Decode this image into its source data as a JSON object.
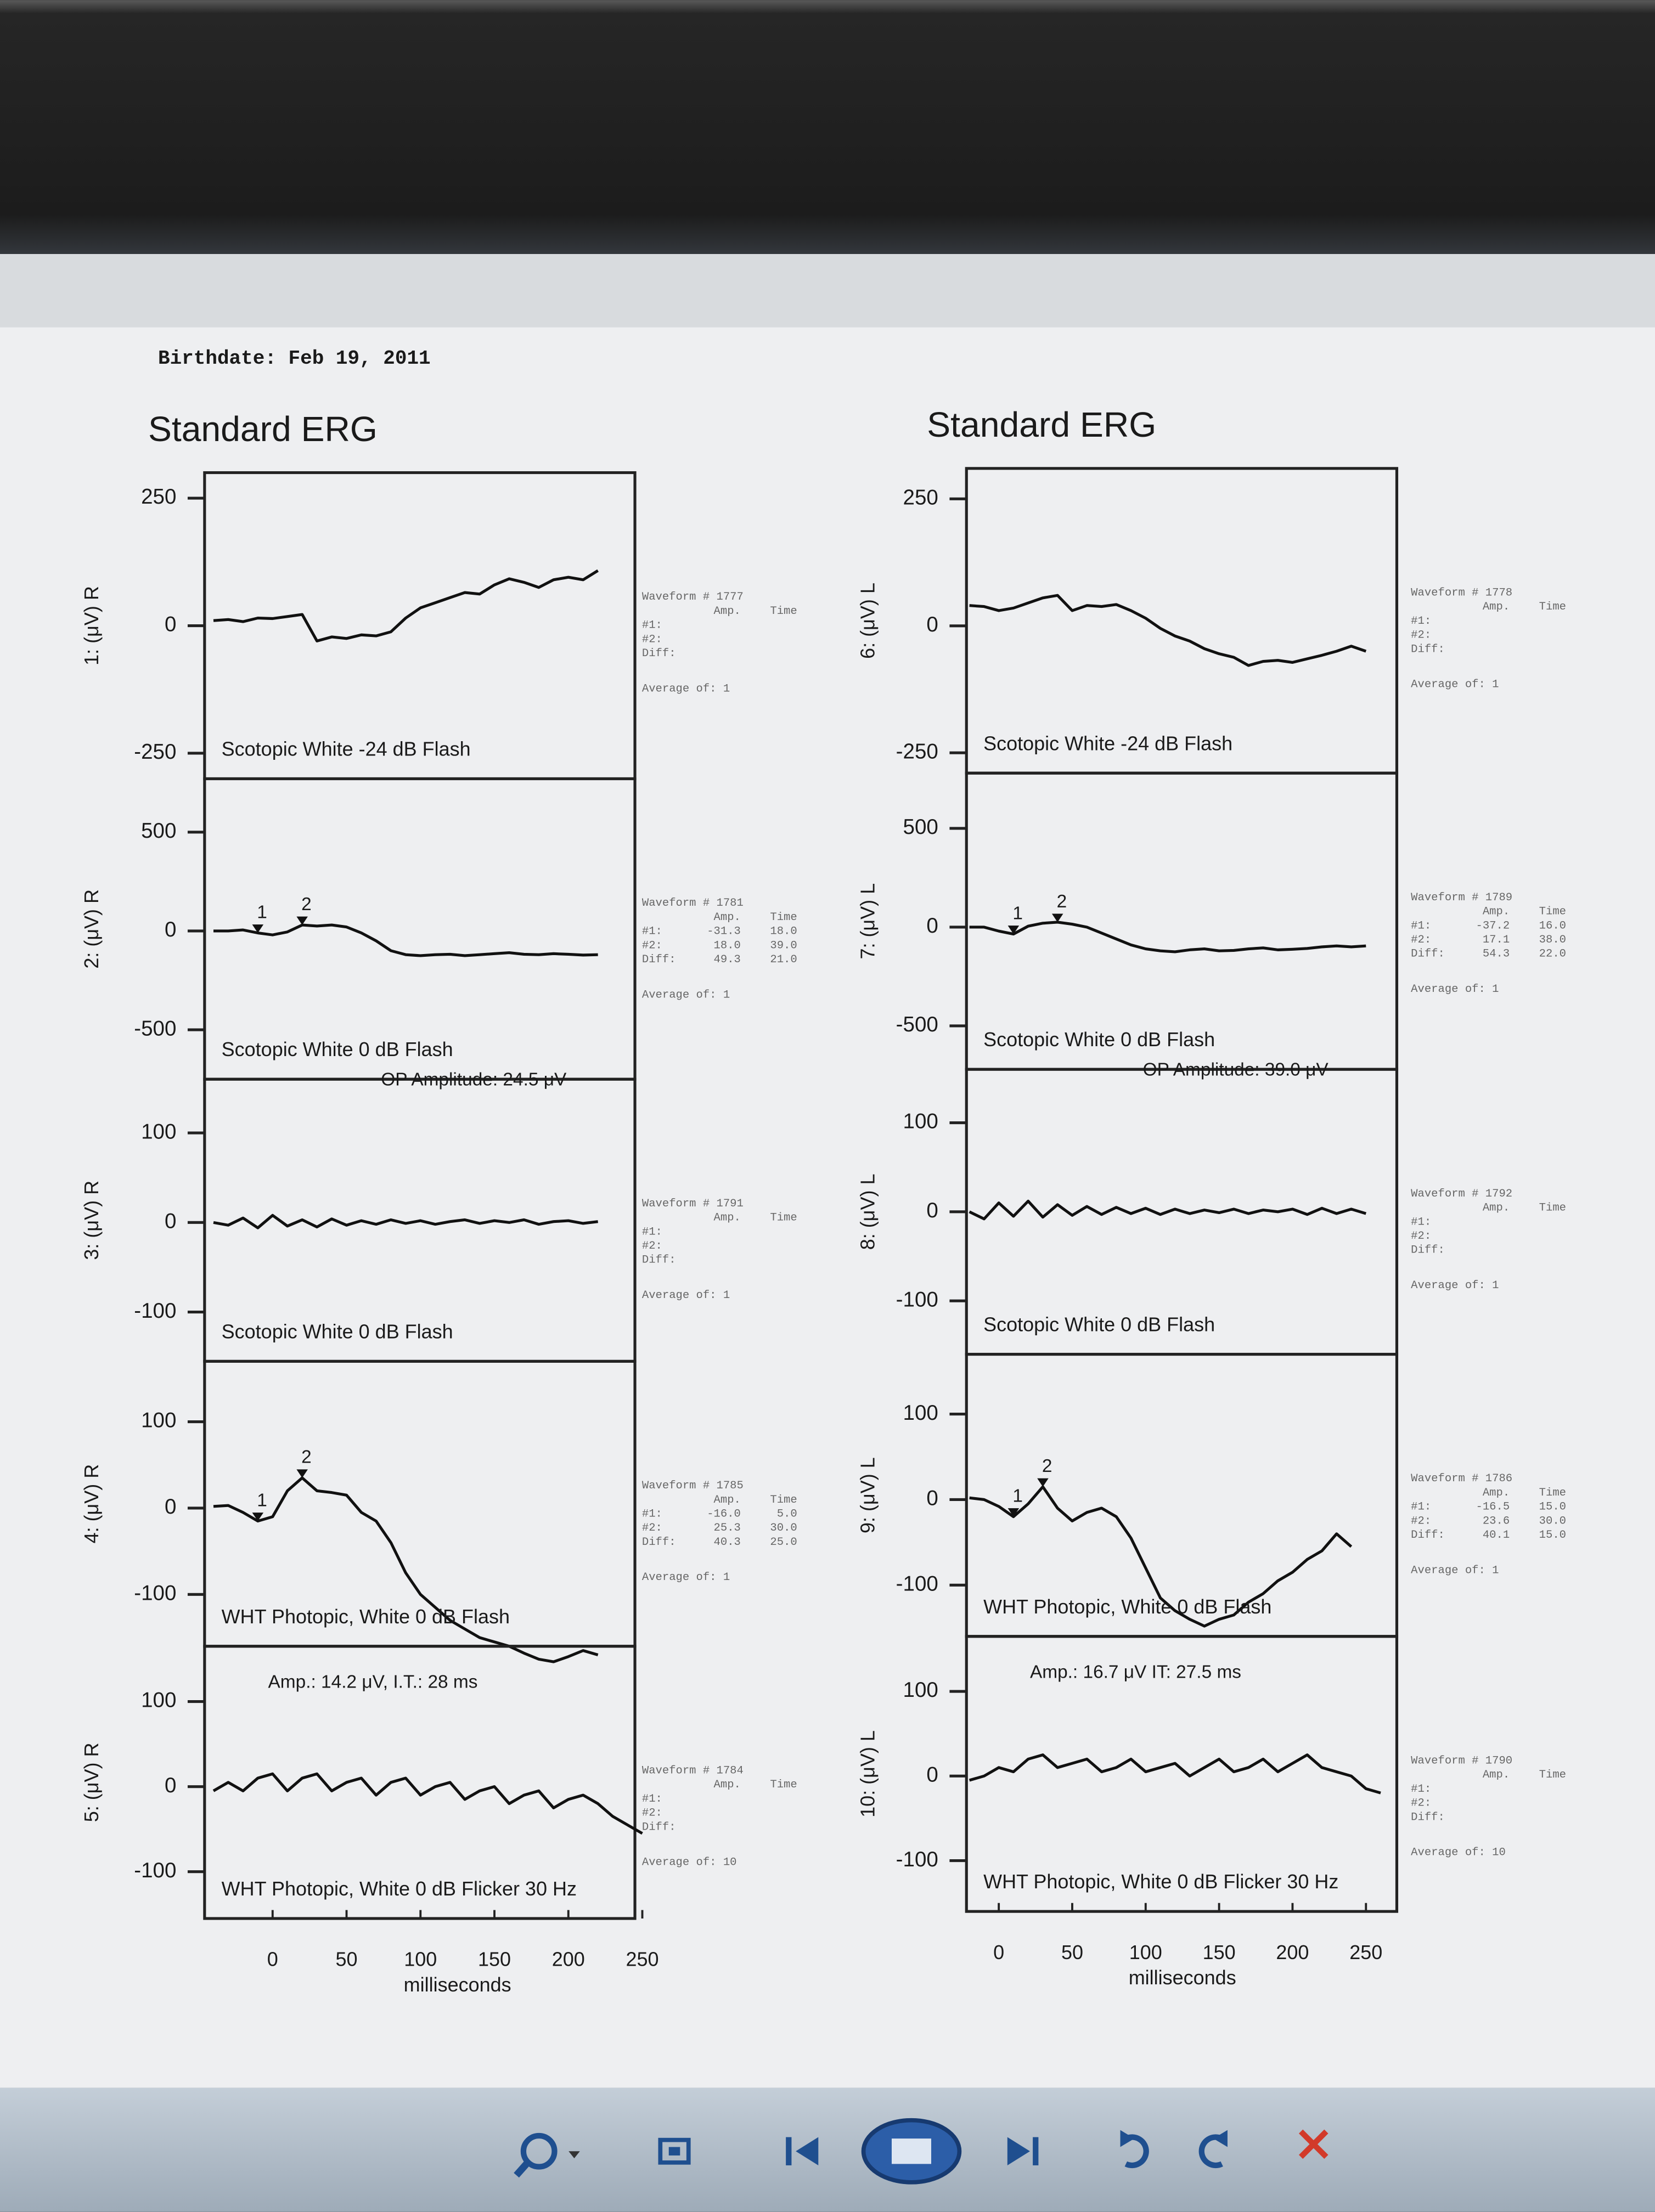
{
  "header": {
    "birthdate": "Birthdate: Feb 19, 2011"
  },
  "titles": [
    "Standard ERG",
    "Standard ERG"
  ],
  "chart_data": [
    {
      "type": "line",
      "ylabel": "1: (μV) R",
      "label": "Scotopic White -24 dB Flash",
      "x": [
        -40,
        -30,
        -20,
        -10,
        0,
        10,
        20,
        30,
        40,
        50,
        60,
        70,
        80,
        90,
        100,
        110,
        120,
        130,
        140,
        150,
        160,
        170,
        180,
        190,
        200,
        210,
        220
      ],
      "values": [
        10,
        12,
        8,
        15,
        14,
        18,
        22,
        -30,
        -22,
        -25,
        -18,
        -20,
        -12,
        15,
        35,
        45,
        55,
        65,
        62,
        80,
        92,
        85,
        75,
        90,
        95,
        90,
        108
      ],
      "color": "#111111",
      "xlim": [
        -46,
        245
      ],
      "ylim": [
        -300,
        300
      ],
      "yticks": [
        -250,
        0,
        250
      ],
      "info": {
        "waveform": "Waveform # 1777",
        "columns": [
          "Amp.",
          "Time"
        ],
        "rows": [
          [
            "#1:"
          ],
          [
            "#2:"
          ],
          [
            "Diff:"
          ]
        ],
        "average": "Average of: 1"
      }
    },
    {
      "type": "line",
      "ylabel": "2: (μV) R",
      "label": "Scotopic White 0 dB Flash",
      "x": [
        -40,
        -30,
        -20,
        -10,
        0,
        10,
        20,
        30,
        40,
        50,
        60,
        70,
        80,
        90,
        100,
        110,
        120,
        130,
        140,
        150,
        160,
        170,
        180,
        190,
        200,
        210,
        220
      ],
      "values": [
        0,
        0,
        5,
        -10,
        -20,
        -5,
        30,
        25,
        30,
        20,
        -10,
        -50,
        -100,
        -120,
        -125,
        -120,
        -118,
        -125,
        -120,
        -115,
        -110,
        -118,
        -120,
        -115,
        -118,
        -122,
        -120
      ],
      "color": "#111111",
      "xlim": [
        -46,
        245
      ],
      "ylim": [
        -750,
        770
      ],
      "yticks": [
        -500,
        0,
        500
      ],
      "markers": [
        {
          "label": "1",
          "x": -10,
          "value": -10
        },
        {
          "label": "2",
          "x": 20,
          "value": 30
        }
      ],
      "info": {
        "waveform": "Waveform # 1781",
        "columns": [
          "Amp.",
          "Time"
        ],
        "rows": [
          [
            "#1:",
            "-31.3",
            "18.0"
          ],
          [
            "#2:",
            "18.0",
            "39.0"
          ],
          [
            "Diff:",
            "49.3",
            "21.0"
          ]
        ],
        "average": "Average of: 1"
      }
    },
    {
      "type": "line",
      "ylabel": "3: (μV) R",
      "label": "Scotopic White 0 dB Flash",
      "annotation": "OP Amplitude: 24.5 μV",
      "x": [
        -40,
        -30,
        -20,
        -10,
        0,
        10,
        20,
        30,
        40,
        50,
        60,
        70,
        80,
        90,
        100,
        110,
        120,
        130,
        140,
        150,
        160,
        170,
        180,
        190,
        200,
        210,
        220
      ],
      "values": [
        0,
        -3,
        5,
        -6,
        8,
        -4,
        3,
        -5,
        4,
        -3,
        2,
        -2,
        3,
        -1,
        2,
        -2,
        1,
        3,
        -1,
        2,
        0,
        3,
        -2,
        1,
        2,
        -1,
        1
      ],
      "color": "#111111",
      "xlim": [
        -46,
        245
      ],
      "ylim": [
        -155,
        160
      ],
      "yticks": [
        -100,
        0,
        100
      ],
      "info": {
        "waveform": "Waveform # 1791",
        "columns": [
          "Amp.",
          "Time"
        ],
        "rows": [
          [
            "#1:"
          ],
          [
            "#2:"
          ],
          [
            "Diff:"
          ]
        ],
        "average": "Average of: 1"
      }
    },
    {
      "type": "line",
      "ylabel": "4: (μV) R",
      "label": "WHT Photopic, White 0 dB Flash",
      "x": [
        -40,
        -30,
        -20,
        -10,
        0,
        10,
        20,
        30,
        40,
        50,
        60,
        70,
        80,
        90,
        100,
        110,
        120,
        130,
        140,
        150,
        160,
        170,
        180,
        190,
        200,
        210,
        220
      ],
      "values": [
        2,
        3,
        -5,
        -15,
        -10,
        20,
        35,
        20,
        18,
        15,
        -5,
        -15,
        -40,
        -75,
        -100,
        -115,
        -130,
        -140,
        -150,
        -155,
        -160,
        -168,
        -175,
        -178,
        -172,
        -165,
        -170
      ],
      "color": "#111111",
      "xlim": [
        -46,
        245
      ],
      "ylim": [
        -160,
        170
      ],
      "yticks": [
        -100,
        0,
        100
      ],
      "markers": [
        {
          "label": "1",
          "x": -10,
          "value": -15
        },
        {
          "label": "2",
          "x": 20,
          "value": 35
        }
      ],
      "info": {
        "waveform": "Waveform # 1785",
        "columns": [
          "Amp.",
          "Time"
        ],
        "rows": [
          [
            "#1:",
            "-16.0",
            "5.0"
          ],
          [
            "#2:",
            "25.3",
            "30.0"
          ],
          [
            "Diff:",
            "40.3",
            "25.0"
          ]
        ],
        "average": "Average of: 1"
      }
    },
    {
      "type": "line",
      "ylabel": "5: (μV) R",
      "label": "WHT Photopic, White 0 dB Flicker 30 Hz",
      "annotation": "Amp.: 14.2 μV, I.T.: 28 ms",
      "x": [
        -40,
        -30,
        -20,
        -10,
        0,
        10,
        20,
        30,
        40,
        50,
        60,
        70,
        80,
        90,
        100,
        110,
        120,
        130,
        140,
        150,
        160,
        170,
        180,
        190,
        200,
        210,
        220,
        230,
        240,
        250
      ],
      "values": [
        -5,
        5,
        -5,
        10,
        15,
        -5,
        10,
        15,
        -5,
        5,
        10,
        -10,
        5,
        10,
        -10,
        0,
        5,
        -15,
        -5,
        0,
        -20,
        -10,
        -5,
        -25,
        -15,
        -10,
        -20,
        -35,
        -45,
        -55
      ],
      "color": "#111111",
      "xlim": [
        -46,
        245
      ],
      "ylim": [
        -155,
        165
      ],
      "yticks": [
        -100,
        0,
        100
      ],
      "xticks": [
        0,
        50,
        100,
        150,
        200,
        250
      ],
      "xlabel": "milliseconds",
      "info": {
        "waveform": "Waveform # 1784",
        "columns": [
          "Amp.",
          "Time"
        ],
        "rows": [
          [
            "#1:"
          ],
          [
            "#2:"
          ],
          [
            "Diff:"
          ]
        ],
        "average": "Average of: 10"
      }
    },
    {
      "type": "line",
      "ylabel": "6: (μV) L",
      "label": "Scotopic White -24 dB Flash",
      "x": [
        -20,
        -10,
        0,
        10,
        20,
        30,
        40,
        50,
        60,
        70,
        80,
        90,
        100,
        110,
        120,
        130,
        140,
        150,
        160,
        170,
        180,
        190,
        200,
        210,
        220,
        230,
        240,
        250
      ],
      "values": [
        40,
        38,
        30,
        35,
        45,
        55,
        60,
        30,
        40,
        38,
        42,
        30,
        15,
        -5,
        -20,
        -30,
        -45,
        -55,
        -62,
        -78,
        -70,
        -68,
        -72,
        -65,
        -58,
        -50,
        -40,
        -50
      ],
      "color": "#111111",
      "xlim": [
        -22,
        271
      ],
      "ylim": [
        -290,
        310
      ],
      "yticks": [
        -250,
        0,
        250
      ],
      "info": {
        "waveform": "Waveform # 1778",
        "columns": [
          "Amp.",
          "Time"
        ],
        "rows": [
          [
            "#1:"
          ],
          [
            "#2:"
          ],
          [
            "Diff:"
          ]
        ],
        "average": "Average of: 1"
      }
    },
    {
      "type": "line",
      "ylabel": "7: (μV) L",
      "label": "Scotopic White 0 dB Flash",
      "x": [
        -20,
        -10,
        0,
        10,
        20,
        30,
        40,
        50,
        60,
        70,
        80,
        90,
        100,
        110,
        120,
        130,
        140,
        150,
        160,
        170,
        180,
        190,
        200,
        210,
        220,
        230,
        240,
        250
      ],
      "values": [
        0,
        0,
        -20,
        -35,
        5,
        20,
        25,
        15,
        0,
        -30,
        -60,
        -90,
        -110,
        -120,
        -125,
        -115,
        -110,
        -120,
        -118,
        -110,
        -105,
        -115,
        -112,
        -108,
        -100,
        -95,
        -100,
        -95
      ],
      "color": "#111111",
      "xlim": [
        -22,
        271
      ],
      "ylim": [
        -720,
        780
      ],
      "yticks": [
        -500,
        0,
        500
      ],
      "markers": [
        {
          "label": "1",
          "x": 10,
          "value": -35
        },
        {
          "label": "2",
          "x": 40,
          "value": 25
        }
      ],
      "info": {
        "waveform": "Waveform # 1789",
        "columns": [
          "Amp.",
          "Time"
        ],
        "rows": [
          [
            "#1:",
            "-37.2",
            "16.0"
          ],
          [
            "#2:",
            "17.1",
            "38.0"
          ],
          [
            "Diff:",
            "54.3",
            "22.0"
          ]
        ],
        "average": "Average of: 1"
      }
    },
    {
      "type": "line",
      "ylabel": "8: (μV) L",
      "label": "Scotopic White 0 dB Flash",
      "annotation": "OP Amplitude: 39.0 μV",
      "x": [
        -20,
        -10,
        0,
        10,
        20,
        30,
        40,
        50,
        60,
        70,
        80,
        90,
        100,
        110,
        120,
        130,
        140,
        150,
        160,
        170,
        180,
        190,
        200,
        210,
        220,
        230,
        240,
        250
      ],
      "values": [
        0,
        -8,
        10,
        -5,
        12,
        -6,
        8,
        -4,
        6,
        -3,
        5,
        -2,
        4,
        -3,
        3,
        -2,
        2,
        -1,
        3,
        -2,
        2,
        0,
        3,
        -3,
        4,
        -2,
        3,
        -2
      ],
      "color": "#111111",
      "xlim": [
        -22,
        271
      ],
      "ylim": [
        -160,
        160
      ],
      "yticks": [
        -100,
        0,
        100
      ],
      "info": {
        "waveform": "Waveform # 1792",
        "columns": [
          "Amp.",
          "Time"
        ],
        "rows": [
          [
            "#1:"
          ],
          [
            "#2:"
          ],
          [
            "Diff:"
          ]
        ],
        "average": "Average of: 1"
      }
    },
    {
      "type": "line",
      "ylabel": "9: (μV) L",
      "label": "WHT Photopic, White 0 dB Flash",
      "x": [
        -20,
        -10,
        0,
        10,
        20,
        30,
        40,
        50,
        60,
        70,
        80,
        90,
        100,
        110,
        120,
        130,
        140,
        150,
        160,
        170,
        180,
        190,
        200,
        210,
        220,
        230,
        240
      ],
      "values": [
        2,
        0,
        -8,
        -20,
        -5,
        15,
        -10,
        -25,
        -15,
        -10,
        -20,
        -45,
        -80,
        -115,
        -130,
        -140,
        -148,
        -140,
        -135,
        -120,
        -110,
        -95,
        -85,
        -70,
        -60,
        -40,
        -55
      ],
      "color": "#111111",
      "xlim": [
        -22,
        271
      ],
      "ylim": [
        -160,
        170
      ],
      "yticks": [
        -100,
        0,
        100
      ],
      "markers": [
        {
          "label": "1",
          "x": 10,
          "value": -20
        },
        {
          "label": "2",
          "x": 30,
          "value": 15
        }
      ],
      "info": {
        "waveform": "Waveform # 1786",
        "columns": [
          "Amp.",
          "Time"
        ],
        "rows": [
          [
            "#1:",
            "-16.5",
            "15.0"
          ],
          [
            "#2:",
            "23.6",
            "30.0"
          ],
          [
            "Diff:",
            "40.1",
            "15.0"
          ]
        ],
        "average": "Average of: 1"
      }
    },
    {
      "type": "line",
      "ylabel": "10: (μV) L",
      "label": "WHT Photopic, White 0 dB Flicker 30 Hz",
      "annotation": "Amp.: 16.7 μV  IT: 27.5 ms",
      "x": [
        -20,
        -10,
        0,
        10,
        20,
        30,
        40,
        50,
        60,
        70,
        80,
        90,
        100,
        110,
        120,
        130,
        140,
        150,
        160,
        170,
        180,
        190,
        200,
        210,
        220,
        230,
        240,
        250,
        260
      ],
      "values": [
        -5,
        0,
        10,
        5,
        20,
        25,
        10,
        15,
        20,
        5,
        10,
        20,
        5,
        10,
        15,
        0,
        10,
        20,
        5,
        10,
        20,
        5,
        15,
        25,
        10,
        5,
        0,
        -15,
        -20
      ],
      "color": "#111111",
      "xlim": [
        -22,
        271
      ],
      "ylim": [
        -160,
        165
      ],
      "yticks": [
        -100,
        0,
        100
      ],
      "xticks": [
        0,
        50,
        100,
        150,
        200,
        250
      ],
      "xlabel": "milliseconds",
      "info": {
        "waveform": "Waveform # 1790",
        "columns": [
          "Amp.",
          "Time"
        ],
        "rows": [
          [
            "#1:"
          ],
          [
            "#2:"
          ],
          [
            "Diff:"
          ]
        ],
        "average": "Average of: 10"
      }
    }
  ]
}
